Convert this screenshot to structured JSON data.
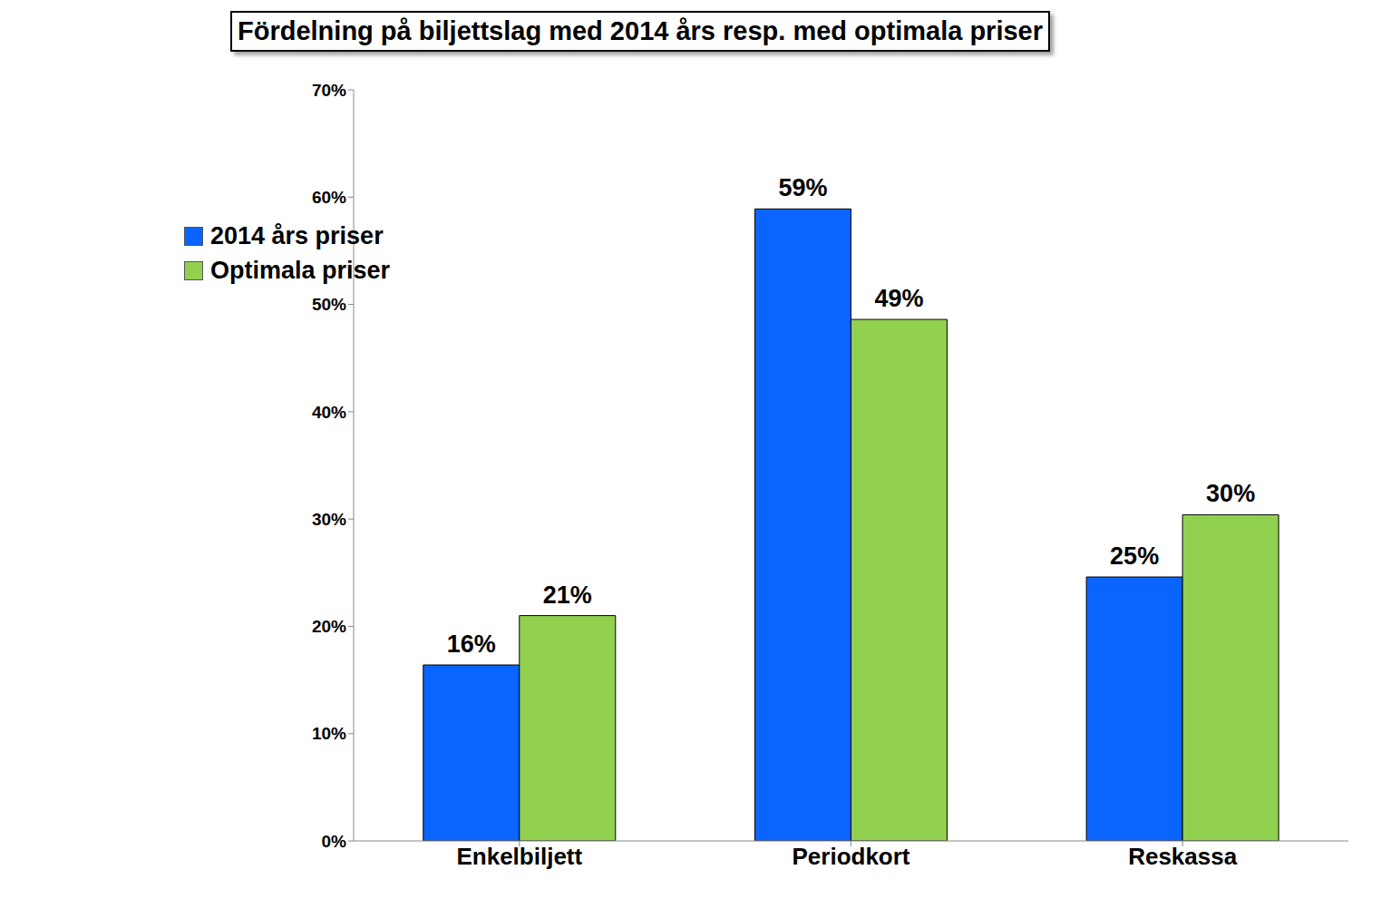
{
  "chart_data": {
    "type": "bar",
    "title": "Fördelning på biljettslag med 2014 års resp. med optimala priser",
    "categories": [
      "Enkelbiljett",
      "Periodkort",
      "Reskassa"
    ],
    "series": [
      {
        "name": "2014 års priser",
        "color": "#0a64ff",
        "values": [
          16.4,
          58.9,
          24.6
        ],
        "value_labels": [
          "16%",
          "59%",
          "25%"
        ]
      },
      {
        "name": "Optimala priser",
        "color": "#92d050",
        "values": [
          21.0,
          48.6,
          30.4
        ],
        "value_labels": [
          "21%",
          "49%",
          "30%"
        ]
      }
    ],
    "ylim": [
      0,
      70
    ],
    "yticks": [
      {
        "value": 0,
        "label": "0%"
      },
      {
        "value": 10,
        "label": "10%"
      },
      {
        "value": 20,
        "label": "20%"
      },
      {
        "value": 30,
        "label": "30%"
      },
      {
        "value": 40,
        "label": "40%"
      },
      {
        "value": 50,
        "label": "50%"
      },
      {
        "value": 60,
        "label": "60%"
      },
      {
        "value": 70,
        "label": "70%"
      }
    ],
    "grid": false,
    "legend": "upper left",
    "data_labels": true
  }
}
